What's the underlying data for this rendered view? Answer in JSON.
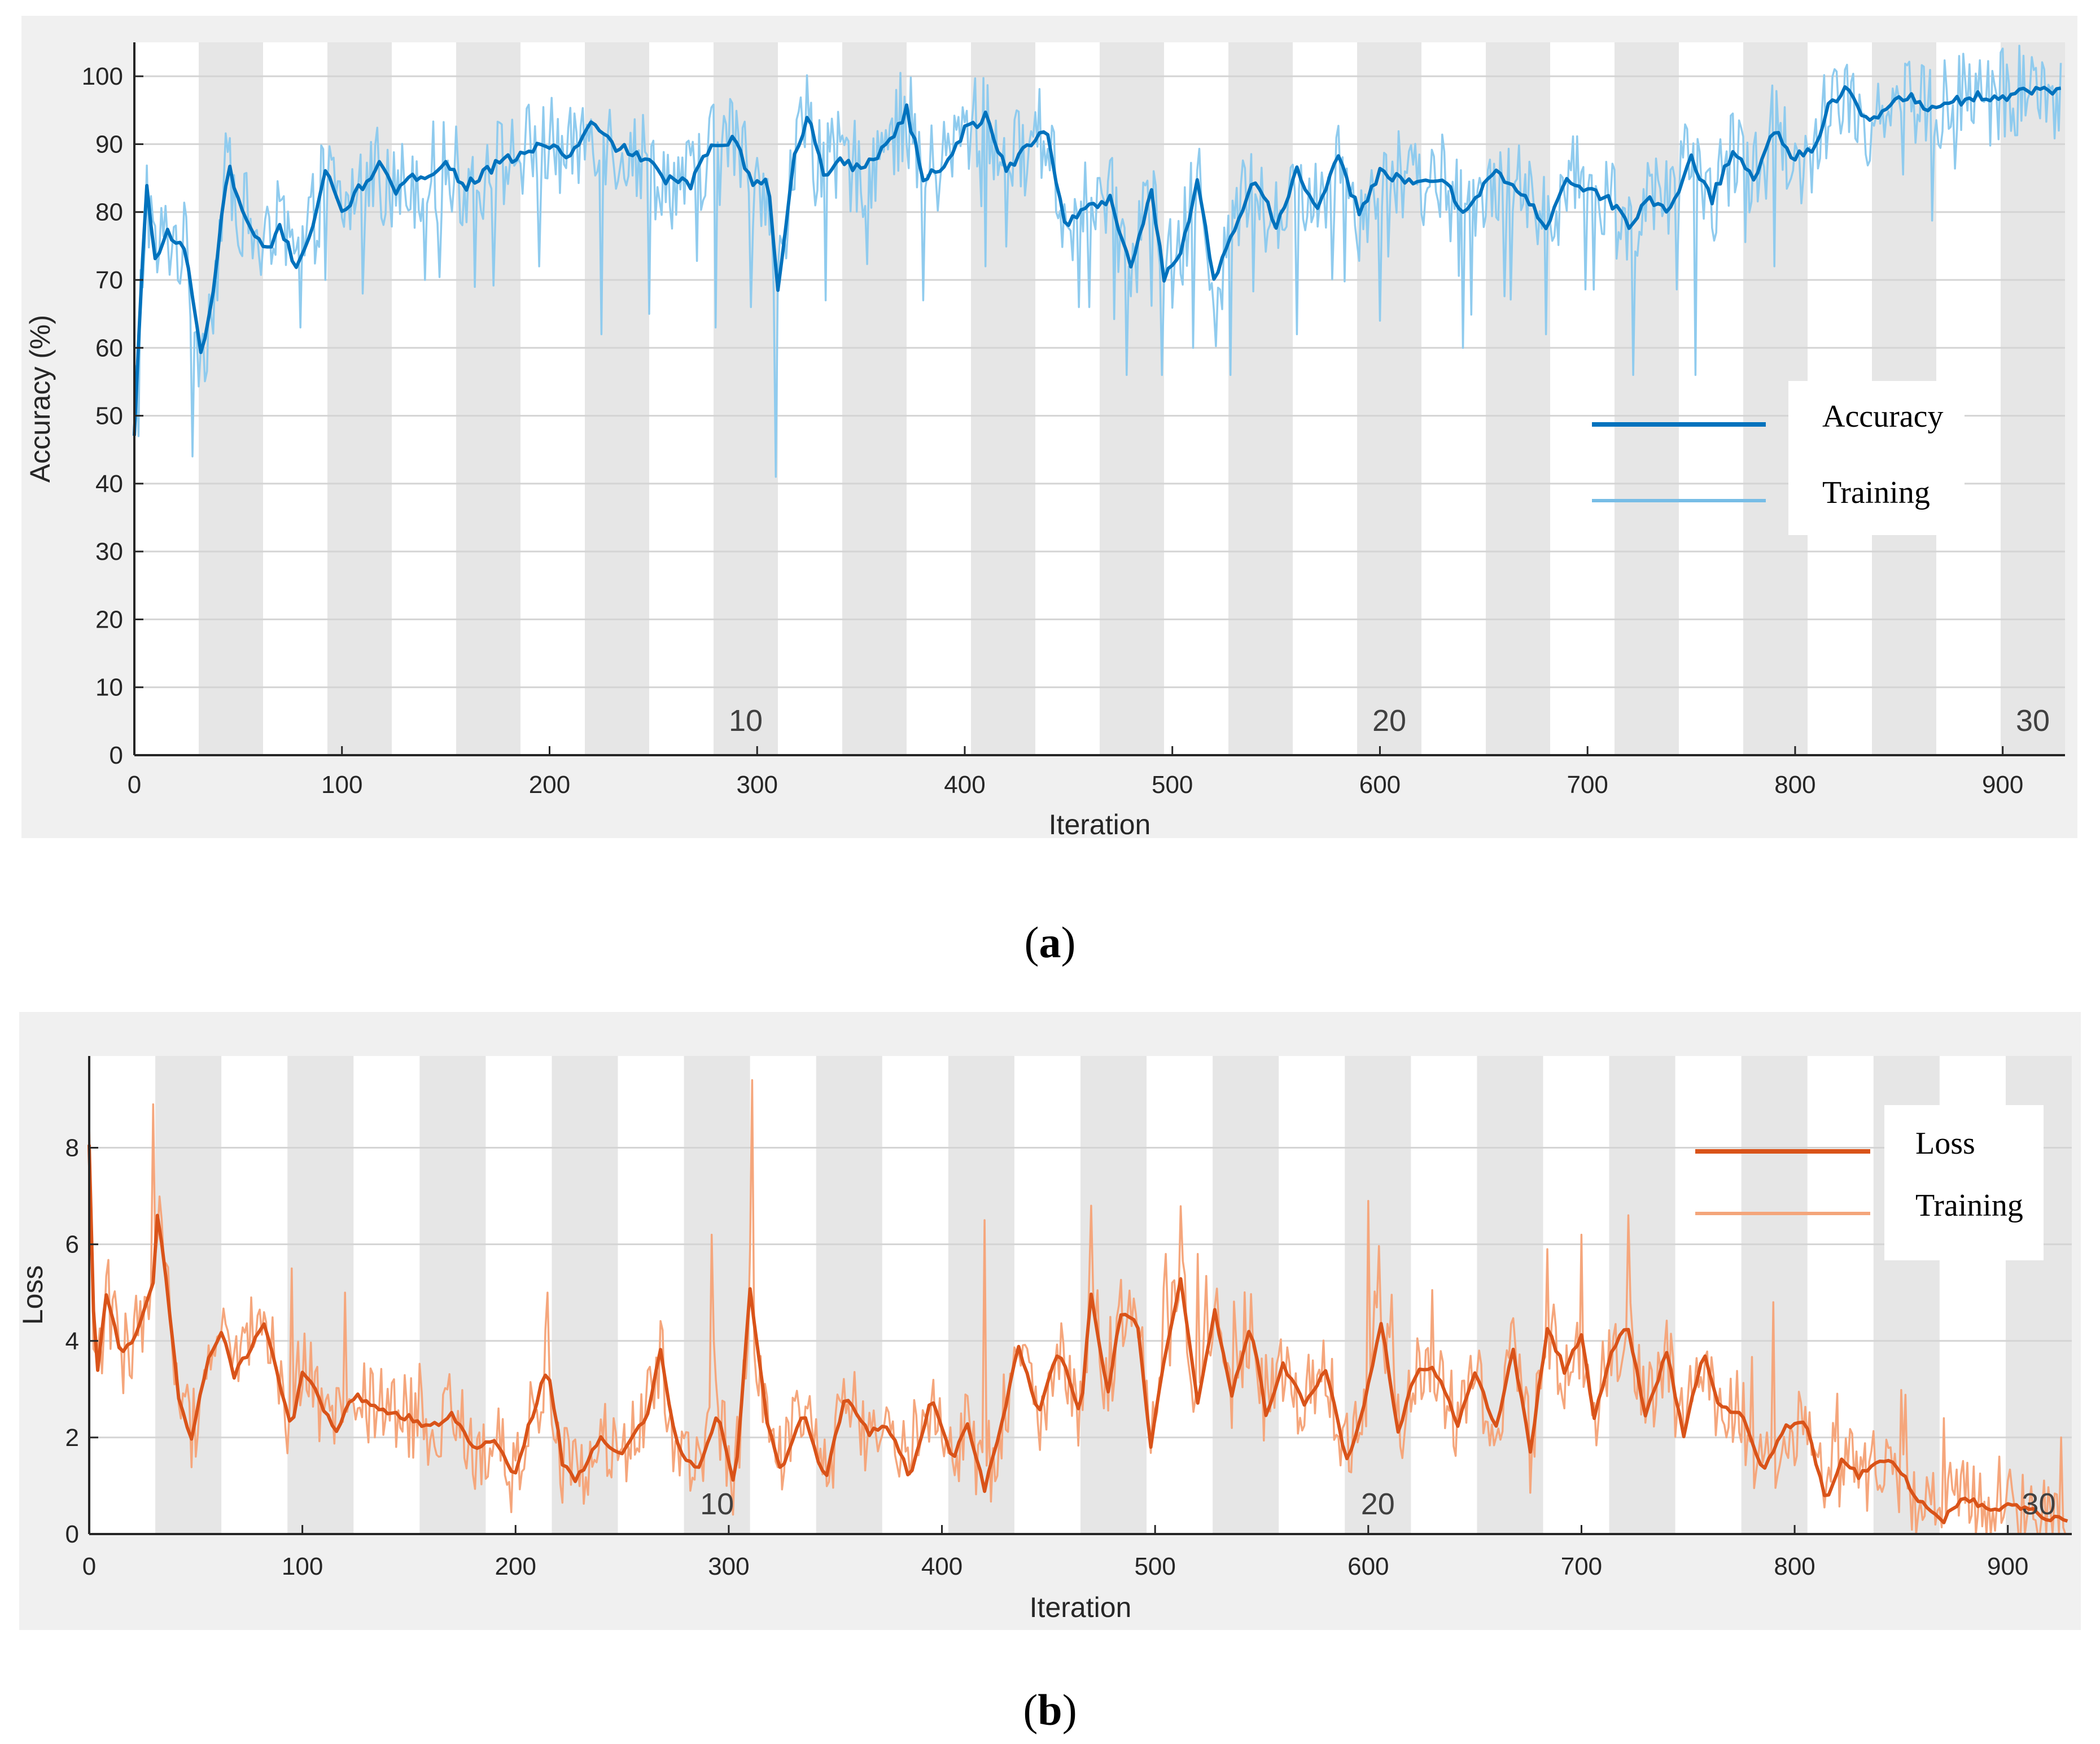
{
  "chart_data": [
    {
      "type": "line",
      "panel": "a",
      "caption_letter": "a",
      "xlabel": "Iteration",
      "ylabel": "Accuracy (%)",
      "xlim": [
        0,
        930
      ],
      "ylim": [
        0,
        105
      ],
      "x_ticks": [
        0,
        100,
        200,
        300,
        400,
        500,
        600,
        700,
        800,
        900
      ],
      "y_ticks": [
        0,
        10,
        20,
        30,
        40,
        50,
        60,
        70,
        80,
        90,
        100
      ],
      "epoch_iterations": 31,
      "epoch_labels": [
        {
          "text": "10",
          "epoch": 10
        },
        {
          "text": "20",
          "epoch": 20
        },
        {
          "text": "30",
          "epoch": 30
        }
      ],
      "legend": {
        "position": "right",
        "entries": [
          {
            "label": "Accuracy",
            "color": "#0072BD"
          },
          {
            "label": "Training",
            "color": "#77BDE6"
          }
        ]
      },
      "colors": {
        "smoothed": "#0072BD",
        "raw": "#8FCBEE"
      },
      "series": [
        {
          "name": "Accuracy",
          "style": "smoothed",
          "key_points": [
            [
              0,
              47
            ],
            [
              3,
              67
            ],
            [
              6,
              84
            ],
            [
              10,
              73
            ],
            [
              16,
              77
            ],
            [
              25,
              74
            ],
            [
              32,
              59
            ],
            [
              38,
              68
            ],
            [
              45,
              87
            ],
            [
              52,
              80
            ],
            [
              58,
              76
            ],
            [
              65,
              74
            ],
            [
              70,
              78
            ],
            [
              78,
              72
            ],
            [
              85,
              77
            ],
            [
              92,
              86
            ],
            [
              100,
              80
            ],
            [
              110,
              84
            ],
            [
              118,
              87
            ],
            [
              125,
              83
            ],
            [
              135,
              85
            ],
            [
              150,
              87
            ],
            [
              160,
              84
            ],
            [
              175,
              87
            ],
            [
              190,
              89
            ],
            [
              200,
              90
            ],
            [
              210,
              88
            ],
            [
              220,
              93
            ],
            [
              230,
              90
            ],
            [
              245,
              88
            ],
            [
              255,
              85
            ],
            [
              268,
              84
            ],
            [
              278,
              90
            ],
            [
              290,
              91
            ],
            [
              297,
              84
            ],
            [
              305,
              85
            ],
            [
              310,
              69
            ],
            [
              318,
              88
            ],
            [
              325,
              95
            ],
            [
              332,
              85
            ],
            [
              340,
              88
            ],
            [
              350,
              86
            ],
            [
              365,
              91
            ],
            [
              372,
              95
            ],
            [
              380,
              85
            ],
            [
              390,
              87
            ],
            [
              400,
              92
            ],
            [
              410,
              94
            ],
            [
              420,
              86
            ],
            [
              430,
              90
            ],
            [
              440,
              92
            ],
            [
              448,
              78
            ],
            [
              456,
              80
            ],
            [
              470,
              82
            ],
            [
              480,
              72
            ],
            [
              490,
              83
            ],
            [
              496,
              70
            ],
            [
              505,
              75
            ],
            [
              512,
              85
            ],
            [
              520,
              70
            ],
            [
              530,
              78
            ],
            [
              540,
              85
            ],
            [
              550,
              78
            ],
            [
              560,
              86
            ],
            [
              570,
              80
            ],
            [
              580,
              88
            ],
            [
              590,
              80
            ],
            [
              600,
              86
            ],
            [
              615,
              84
            ],
            [
              630,
              85
            ],
            [
              640,
              80
            ],
            [
              655,
              86
            ],
            [
              670,
              82
            ],
            [
              680,
              78
            ],
            [
              690,
              85
            ],
            [
              700,
              83
            ],
            [
              710,
              82
            ],
            [
              720,
              78
            ],
            [
              730,
              82
            ],
            [
              740,
              80
            ],
            [
              750,
              88
            ],
            [
              760,
              82
            ],
            [
              770,
              89
            ],
            [
              780,
              85
            ],
            [
              790,
              92
            ],
            [
              800,
              88
            ],
            [
              810,
              90
            ],
            [
              815,
              95
            ],
            [
              825,
              98
            ],
            [
              835,
              93
            ],
            [
              845,
              96
            ],
            [
              855,
              97
            ],
            [
              865,
              95
            ],
            [
              875,
              96
            ],
            [
              885,
              97
            ],
            [
              900,
              97
            ],
            [
              915,
              98
            ],
            [
              928,
              98
            ]
          ]
        },
        {
          "name": "Training",
          "style": "raw",
          "notable_dips": [
            [
              2,
              47
            ],
            [
              28,
              44
            ],
            [
              80,
              63
            ],
            [
              92,
              70
            ],
            [
              110,
              68
            ],
            [
              140,
              70
            ],
            [
              195,
              72
            ],
            [
              225,
              62
            ],
            [
              248,
              65
            ],
            [
              280,
              63
            ],
            [
              297,
              66
            ],
            [
              309,
              41
            ],
            [
              333,
              67
            ],
            [
              380,
              67
            ],
            [
              410,
              72
            ],
            [
              460,
              66
            ],
            [
              478,
              56
            ],
            [
              495,
              56
            ],
            [
              510,
              60
            ],
            [
              528,
              56
            ],
            [
              560,
              62
            ],
            [
              600,
              64
            ],
            [
              640,
              60
            ],
            [
              680,
              62
            ],
            [
              722,
              56
            ],
            [
              752,
              56
            ],
            [
              790,
              72
            ]
          ]
        }
      ]
    },
    {
      "type": "line",
      "panel": "b",
      "caption_letter": "b",
      "xlabel": "Iteration",
      "ylabel": "Loss",
      "xlim": [
        0,
        930
      ],
      "ylim": [
        0,
        9.9
      ],
      "x_ticks": [
        0,
        100,
        200,
        300,
        400,
        500,
        600,
        700,
        800,
        900
      ],
      "y_ticks": [
        0,
        2,
        4,
        6,
        8
      ],
      "epoch_iterations": 31,
      "epoch_labels": [
        {
          "text": "10",
          "epoch": 10
        },
        {
          "text": "20",
          "epoch": 20
        },
        {
          "text": "30",
          "epoch": 30
        }
      ],
      "legend": {
        "position": "top-right",
        "entries": [
          {
            "label": "Loss",
            "color": "#D95319"
          },
          {
            "label": "Training",
            "color": "#F4A57A"
          }
        ]
      },
      "colors": {
        "smoothed": "#D95319",
        "raw": "#F5A67C"
      },
      "series": [
        {
          "name": "Loss",
          "style": "smoothed",
          "key_points": [
            [
              0,
              8
            ],
            [
              3,
              3
            ],
            [
              8,
              5
            ],
            [
              15,
              3.7
            ],
            [
              22,
              4.1
            ],
            [
              30,
              5.2
            ],
            [
              32,
              6.6
            ],
            [
              36,
              5.3
            ],
            [
              42,
              2.8
            ],
            [
              48,
              2.0
            ],
            [
              55,
              3.5
            ],
            [
              62,
              4.2
            ],
            [
              68,
              3.3
            ],
            [
              75,
              3.8
            ],
            [
              82,
              4.4
            ],
            [
              90,
              3.0
            ],
            [
              95,
              2.2
            ],
            [
              100,
              3.4
            ],
            [
              108,
              2.8
            ],
            [
              115,
              2.1
            ],
            [
              125,
              2.9
            ],
            [
              135,
              2.6
            ],
            [
              150,
              2.4
            ],
            [
              160,
              2.2
            ],
            [
              170,
              2.5
            ],
            [
              180,
              1.8
            ],
            [
              190,
              1.9
            ],
            [
              200,
              1.2
            ],
            [
              206,
              2.2
            ],
            [
              215,
              3.5
            ],
            [
              222,
              1.5
            ],
            [
              228,
              1.1
            ],
            [
              240,
              2.0
            ],
            [
              250,
              1.6
            ],
            [
              262,
              2.5
            ],
            [
              268,
              3.8
            ],
            [
              275,
              1.9
            ],
            [
              285,
              1.3
            ],
            [
              295,
              2.5
            ],
            [
              303,
              1.0
            ],
            [
              310,
              5.1
            ],
            [
              318,
              2.3
            ],
            [
              325,
              1.3
            ],
            [
              335,
              2.6
            ],
            [
              345,
              1.1
            ],
            [
              355,
              2.9
            ],
            [
              365,
              2.1
            ],
            [
              375,
              2.2
            ],
            [
              385,
              1.2
            ],
            [
              395,
              2.8
            ],
            [
              405,
              1.5
            ],
            [
              412,
              2.3
            ],
            [
              420,
              0.9
            ],
            [
              428,
              2.3
            ],
            [
              436,
              3.9
            ],
            [
              445,
              2.5
            ],
            [
              455,
              3.8
            ],
            [
              465,
              2.4
            ],
            [
              470,
              5.0
            ],
            [
              478,
              2.9
            ],
            [
              484,
              4.6
            ],
            [
              492,
              4.3
            ],
            [
              498,
              1.8
            ],
            [
              504,
              3.5
            ],
            [
              512,
              5.3
            ],
            [
              520,
              2.7
            ],
            [
              528,
              4.6
            ],
            [
              536,
              2.9
            ],
            [
              545,
              4.3
            ],
            [
              552,
              2.5
            ],
            [
              560,
              3.5
            ],
            [
              570,
              2.7
            ],
            [
              580,
              3.4
            ],
            [
              590,
              1.5
            ],
            [
              598,
              2.6
            ],
            [
              606,
              4.4
            ],
            [
              614,
              2.1
            ],
            [
              622,
              3.3
            ],
            [
              630,
              3.5
            ],
            [
              642,
              2.3
            ],
            [
              650,
              3.4
            ],
            [
              660,
              2.2
            ],
            [
              668,
              3.8
            ],
            [
              676,
              1.7
            ],
            [
              684,
              4.3
            ],
            [
              692,
              3.4
            ],
            [
              700,
              4.1
            ],
            [
              706,
              2.4
            ],
            [
              714,
              3.8
            ],
            [
              722,
              4.3
            ],
            [
              730,
              2.4
            ],
            [
              740,
              3.8
            ],
            [
              748,
              2.0
            ],
            [
              757,
              3.8
            ],
            [
              765,
              2.6
            ],
            [
              775,
              2.5
            ],
            [
              785,
              1.3
            ],
            [
              795,
              2.2
            ],
            [
              805,
              2.4
            ],
            [
              815,
              0.6
            ],
            [
              822,
              1.6
            ],
            [
              830,
              1.2
            ],
            [
              845,
              1.6
            ],
            [
              860,
              0.6
            ],
            [
              870,
              0.3
            ],
            [
              880,
              0.8
            ],
            [
              890,
              0.5
            ],
            [
              900,
              0.6
            ],
            [
              910,
              0.5
            ],
            [
              920,
              0.3
            ],
            [
              928,
              0.3
            ]
          ]
        },
        {
          "name": "Training",
          "style": "raw",
          "notable_spikes": [
            [
              0,
              8.5
            ],
            [
              30,
              8.9
            ],
            [
              95,
              5.5
            ],
            [
              120,
              5.0
            ],
            [
              215,
              5.0
            ],
            [
              292,
              6.2
            ],
            [
              311,
              9.4
            ],
            [
              420,
              6.5
            ],
            [
              470,
              6.8
            ],
            [
              505,
              5.8
            ],
            [
              520,
              5.8
            ],
            [
              600,
              6.9
            ],
            [
              700,
              6.2
            ],
            [
              722,
              6.6
            ],
            [
              790,
              4.8
            ],
            [
              870,
              2.4
            ],
            [
              925,
              2.0
            ]
          ]
        }
      ]
    }
  ]
}
